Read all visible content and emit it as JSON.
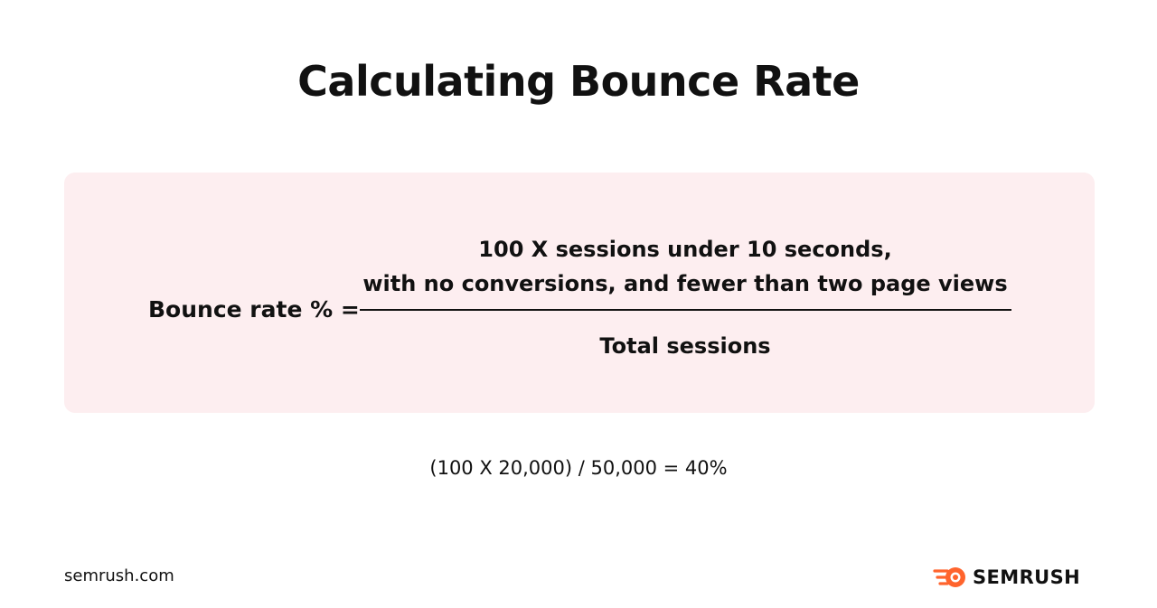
{
  "title": "Calculating Bounce Rate",
  "formula": {
    "lhs": "Bounce rate % =",
    "numerator_line1": "100 X sessions under 10 seconds,",
    "numerator_line2": "with no conversions, and fewer than two page views",
    "denominator": "Total sessions"
  },
  "example": "(100 X 20,000) / 50,000 = 40%",
  "footer": {
    "site": "semrush.com",
    "brand": "SEMRUSH"
  },
  "colors": {
    "card_background": "#fdeef0",
    "brand_orange": "#ff642d",
    "text": "#111111"
  },
  "icons": {
    "logo": "semrush-fireball-icon"
  }
}
